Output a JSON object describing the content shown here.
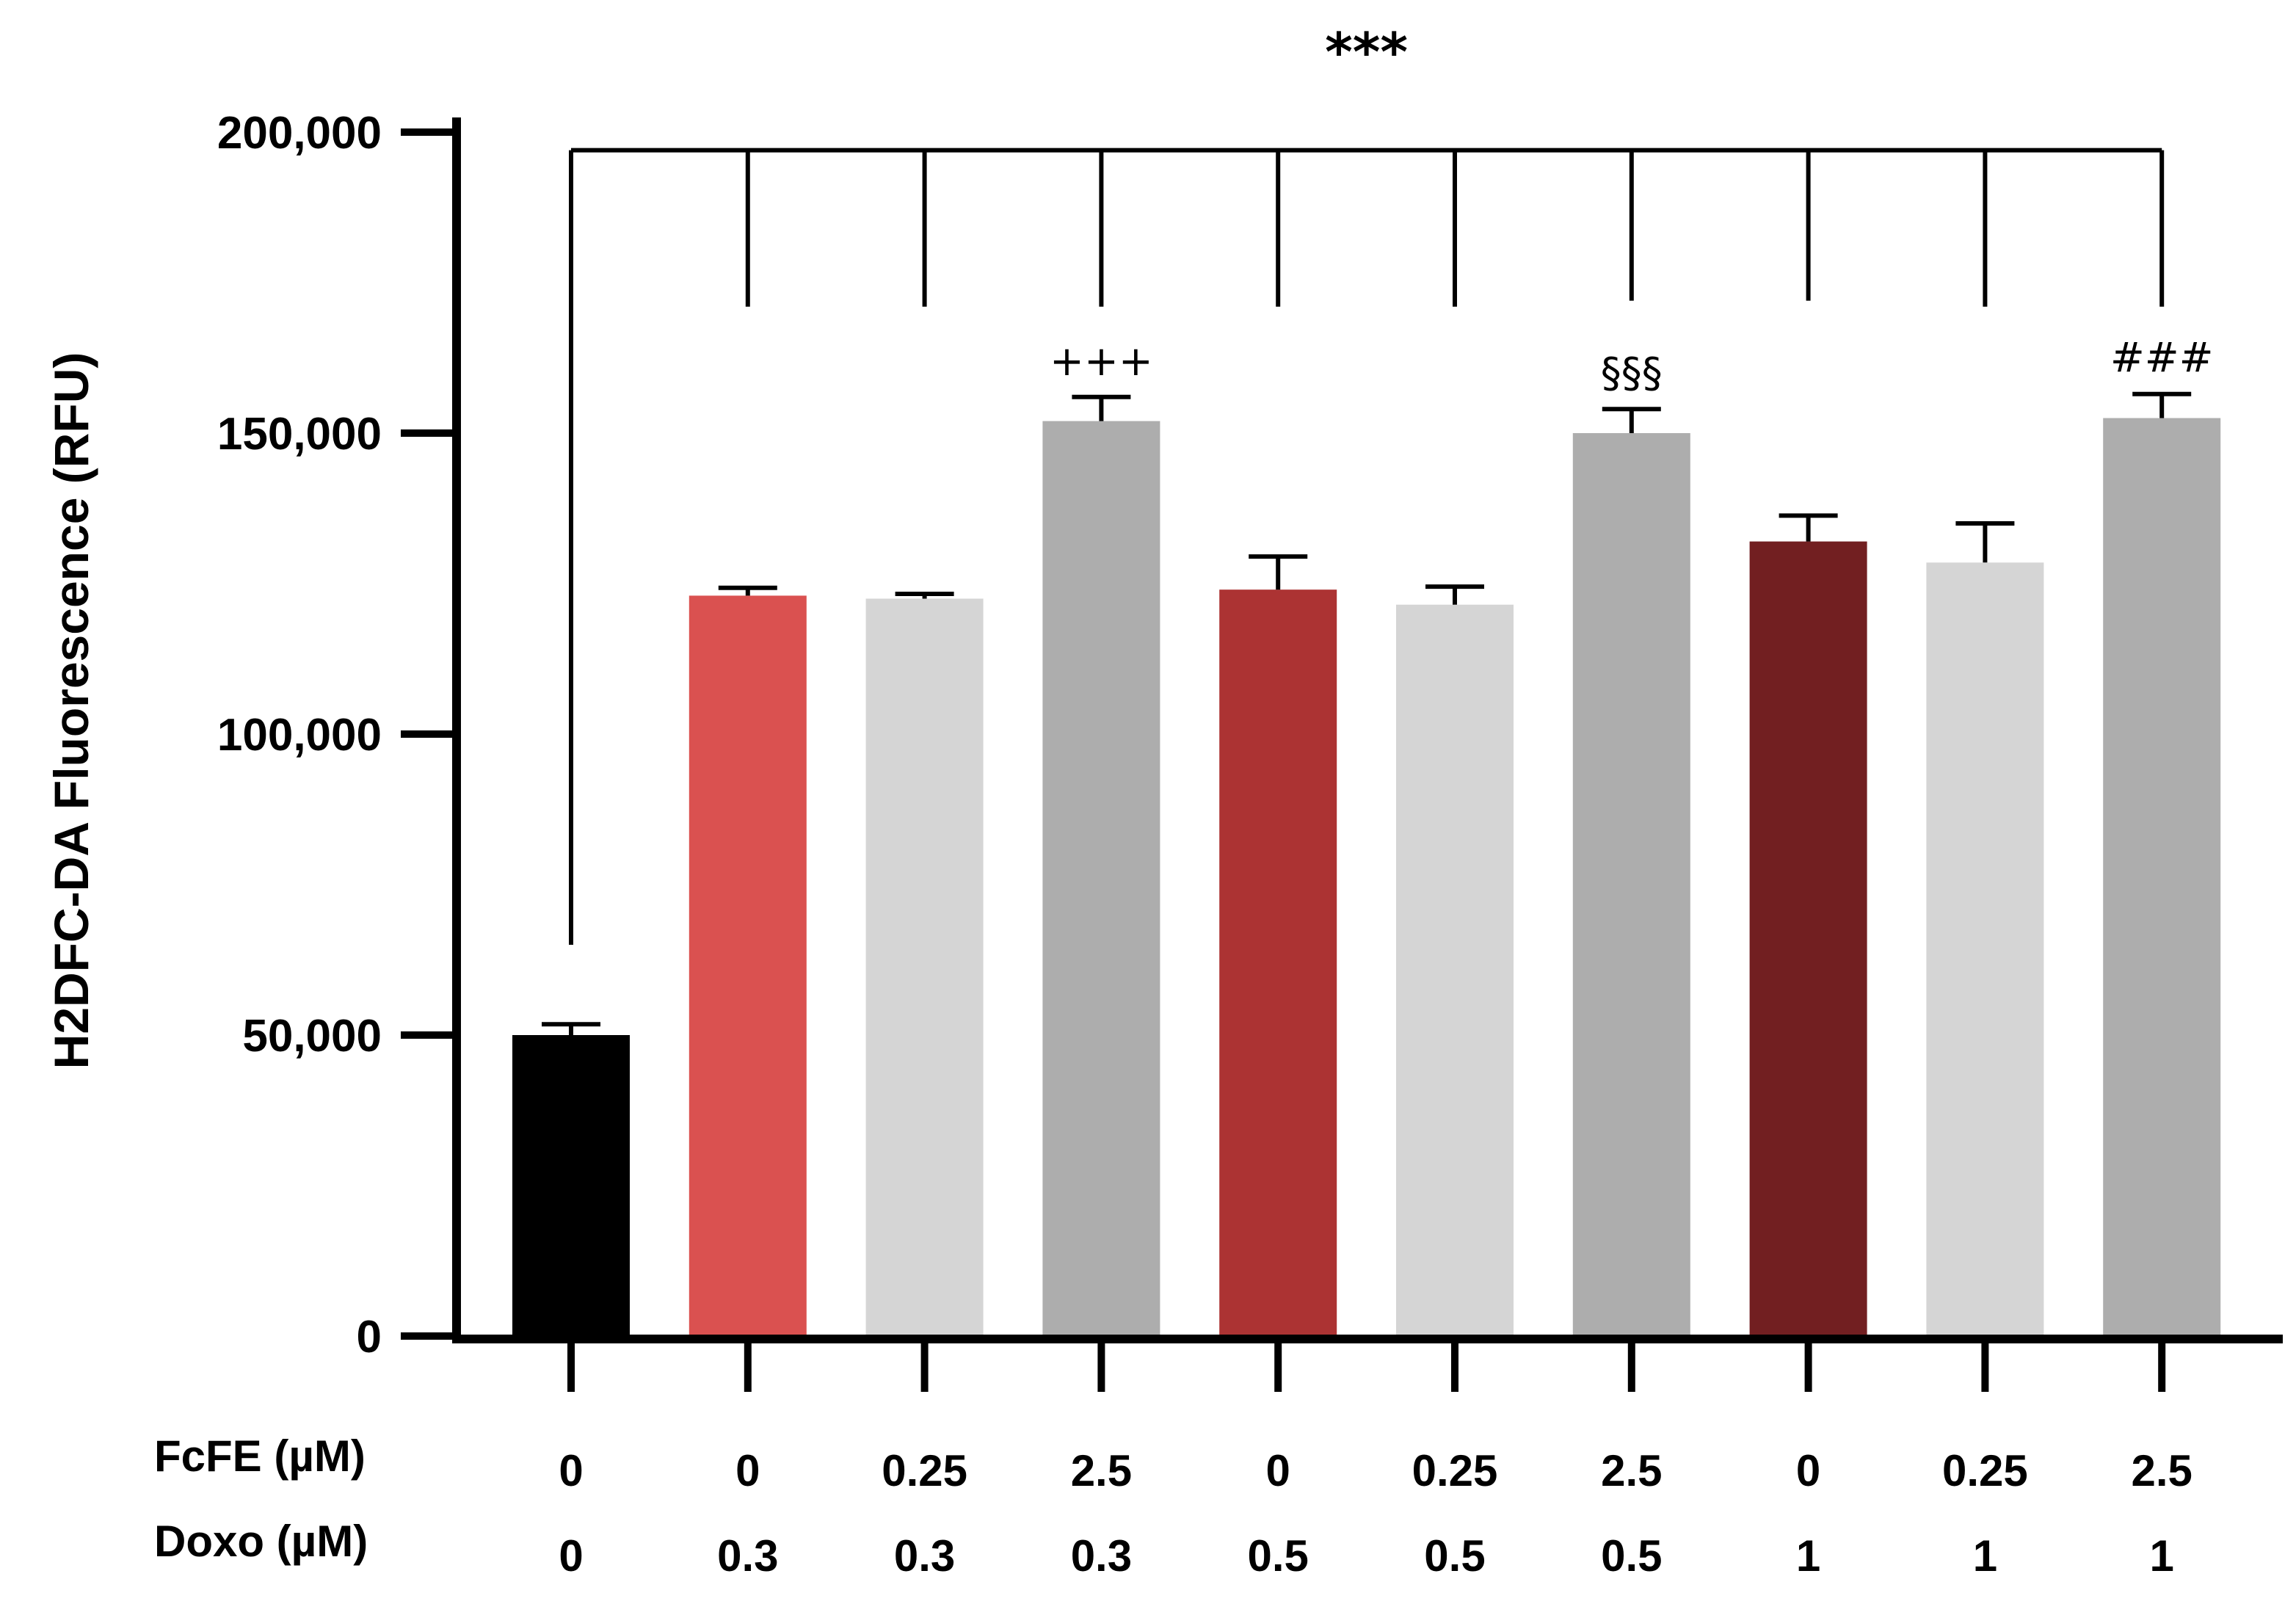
{
  "chart_data": {
    "type": "bar",
    "title": "",
    "ylabel": "H2DFC-DA Fluorescence (RFU)",
    "xlabel": "",
    "ylim": [
      0,
      200000
    ],
    "yticks": [
      0,
      50000,
      100000,
      150000,
      200000
    ],
    "ytick_labels": [
      "0",
      "50,000",
      "100,000",
      "150,000",
      "200,000"
    ],
    "row_labels": {
      "fcfe": "FcFE  (µM)",
      "doxo": "Doxo  (µM)"
    },
    "categories_fcfe": [
      "0",
      "0",
      "0.25",
      "2.5",
      "0",
      "0.25",
      "2.5",
      "0",
      "0.25",
      "2.5"
    ],
    "categories_doxo": [
      "0",
      "0.3",
      "0.3",
      "0.3",
      "0.5",
      "0.5",
      "0.5",
      "1",
      "1",
      "1"
    ],
    "values": [
      50000,
      123000,
      122500,
      152000,
      124000,
      121500,
      150000,
      132000,
      128500,
      152500
    ],
    "errors": [
      1800,
      1300,
      800,
      4000,
      5500,
      3000,
      4000,
      4300,
      6500,
      4000
    ],
    "bar_colors": [
      "#000000",
      "#da5150",
      "#d5d5d5",
      "#adadad",
      "#ac3333",
      "#d5d5d5",
      "#adadad",
      "#721f21",
      "#d5d5d5",
      "#adadad"
    ],
    "significance": {
      "top_label": "***",
      "bracket_value": 197000,
      "bracket_from": 0,
      "bracket_to": 9,
      "drop_values": [
        65000,
        171000,
        171000,
        171000,
        171000,
        171000,
        172000,
        172000,
        171000,
        171000
      ],
      "bar_marks": [
        {
          "index": 3,
          "label": "+++"
        },
        {
          "index": 6,
          "label": "§§§"
        },
        {
          "index": 9,
          "label": "###"
        }
      ]
    }
  }
}
